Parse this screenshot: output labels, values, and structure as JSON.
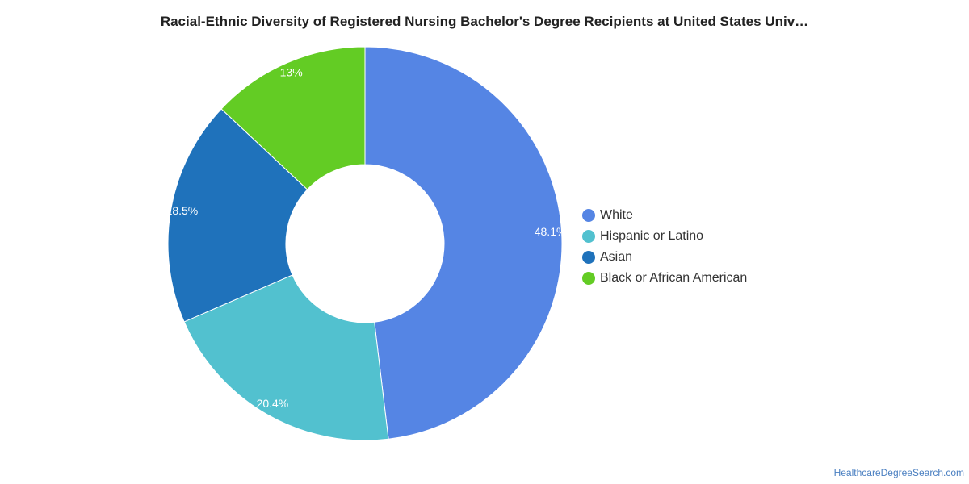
{
  "chart_data": {
    "type": "pie",
    "variant": "donut",
    "title": "Racial-Ethnic Diversity of Registered Nursing Bachelor's Degree Recipients at United States Univ…",
    "categories": [
      "White",
      "Hispanic or Latino",
      "Asian",
      "Black or African American"
    ],
    "values": [
      48.1,
      20.4,
      18.5,
      13
    ],
    "labels": [
      "48.1%",
      "20.4%",
      "18.5%",
      "13%"
    ],
    "colors": [
      "#5585e4",
      "#52c1cf",
      "#1f72bb",
      "#63cc24"
    ],
    "legend_position": "right"
  },
  "source": "HealthcareDegreeSearch.com"
}
